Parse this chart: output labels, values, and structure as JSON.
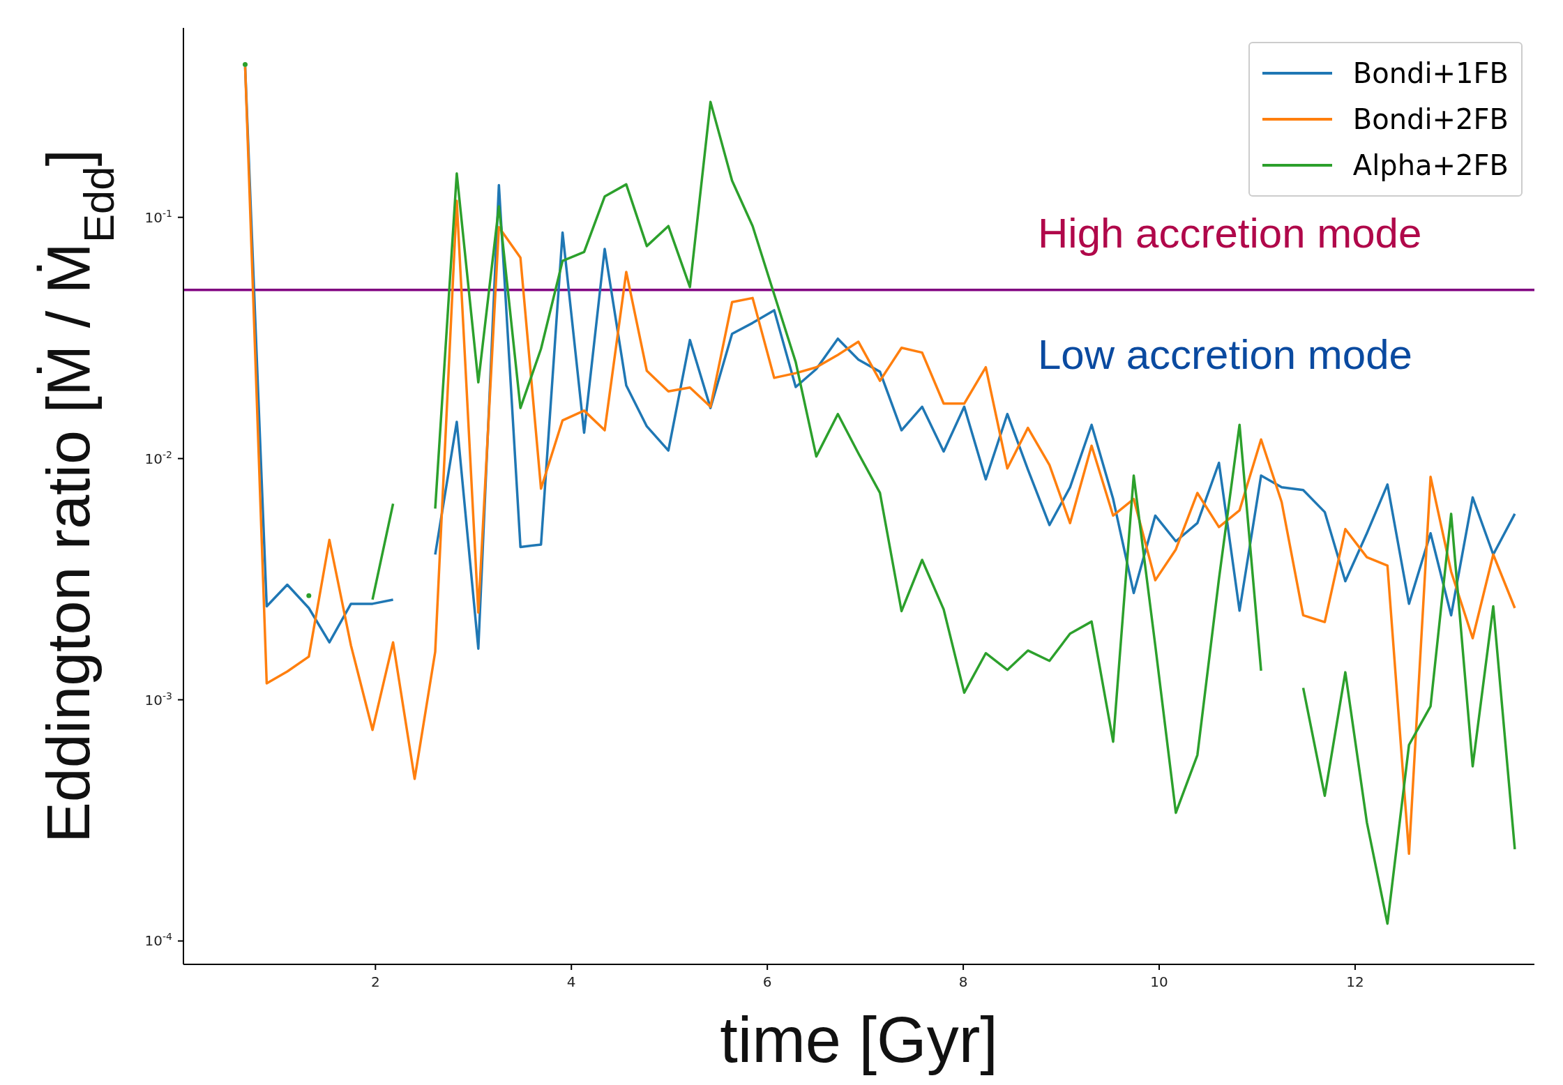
{
  "chart_data": {
    "type": "line",
    "xlabel": "time [Gyr]",
    "ylabel": "Eddington ratio [Ṁ / Ṁ$_{Edd}$]",
    "x": [
      0.67,
      0.89,
      1.1,
      1.32,
      1.53,
      1.75,
      1.97,
      2.18,
      2.4,
      2.61,
      2.83,
      3.05,
      3.26,
      3.48,
      3.69,
      3.91,
      4.13,
      4.34,
      4.56,
      4.77,
      4.99,
      5.21,
      5.42,
      5.64,
      5.85,
      6.07,
      6.29,
      6.5,
      6.72,
      6.93,
      7.15,
      7.37,
      7.58,
      7.8,
      8.01,
      8.23,
      8.45,
      8.66,
      8.88,
      9.09,
      9.31,
      9.53,
      9.74,
      9.96,
      10.17,
      10.39,
      10.61,
      10.82,
      11.04,
      11.25,
      11.47,
      11.69,
      11.9,
      12.12,
      12.33,
      12.55,
      12.77,
      12.98,
      13.2,
      13.41,
      13.63
    ],
    "series": [
      {
        "name": "Bondi+1FB",
        "color": "#1f77b4",
        "values": [
          0.42,
          0.00244,
          0.003,
          0.0024,
          0.00173,
          0.0025,
          0.0025,
          0.0026,
          null,
          0.004,
          0.0142,
          0.00163,
          0.136,
          0.0043,
          0.0044,
          0.0865,
          0.0128,
          0.074,
          0.0201,
          0.0136,
          0.0108,
          0.031,
          0.0162,
          0.0329,
          0.0365,
          0.0412,
          0.0198,
          0.0235,
          0.0314,
          0.0257,
          0.0229,
          0.0131,
          0.0164,
          0.0107,
          0.0164,
          0.0082,
          0.0153,
          0.009,
          0.0053,
          0.0076,
          0.0138,
          0.0068,
          0.00277,
          0.0058,
          0.00454,
          0.0054,
          0.0096,
          0.00234,
          0.0085,
          0.0076,
          0.0074,
          0.006,
          0.0031,
          0.0049,
          0.0078,
          0.0025,
          0.0049,
          0.00224,
          0.0069,
          0.004,
          0.0059
        ]
      },
      {
        "name": "Bondi+2FB",
        "color": "#ff7f0e",
        "values": [
          0.42,
          0.00117,
          0.00131,
          0.00151,
          0.0046,
          0.00168,
          0.00075,
          0.00173,
          0.00047,
          0.00158,
          0.117,
          0.0023,
          0.091,
          0.068,
          0.0075,
          0.0144,
          0.0158,
          0.0131,
          0.0594,
          0.0231,
          0.019,
          0.0197,
          0.0164,
          0.0445,
          0.0463,
          0.0216,
          0.0226,
          0.0239,
          0.0269,
          0.0305,
          0.021,
          0.0288,
          0.0275,
          0.0169,
          0.0169,
          0.0239,
          0.0091,
          0.0134,
          0.0094,
          0.0054,
          0.0113,
          0.0058,
          0.0068,
          0.00313,
          0.0042,
          0.0072,
          0.0052,
          0.0061,
          0.012,
          0.0066,
          0.00224,
          0.0021,
          0.0051,
          0.0039,
          0.0036,
          0.00023,
          0.0084,
          0.0034,
          0.0018,
          0.004,
          0.0024
        ]
      },
      {
        "name": "Alpha+2FB",
        "color": "#2ca02c",
        "values": [
          0.43,
          null,
          null,
          0.0027,
          null,
          null,
          0.0026,
          0.0065,
          null,
          0.0062,
          0.152,
          0.0207,
          0.111,
          0.0162,
          0.0285,
          0.066,
          0.0718,
          0.122,
          0.137,
          0.076,
          0.092,
          0.0514,
          0.301,
          0.142,
          0.092,
          0.048,
          0.0251,
          0.0102,
          0.0153,
          0.0105,
          0.0072,
          0.00233,
          0.0038,
          0.00237,
          0.00107,
          0.00156,
          0.00133,
          0.0016,
          0.00145,
          0.00188,
          0.00211,
          0.00067,
          0.0085,
          0.00168,
          0.00034,
          0.00059,
          0.00317,
          0.0138,
          0.00132,
          null,
          0.00112,
          0.0004,
          0.0013,
          0.00031,
          0.000118,
          0.00065,
          0.00094,
          0.0059,
          0.00053,
          0.00244,
          0.00024
        ]
      }
    ],
    "xlim": [
      0.04,
      13.83
    ],
    "xticks": [
      2,
      4,
      6,
      8,
      10,
      12
    ],
    "ylim": [
      8e-05,
      0.61
    ],
    "log": true,
    "yticks": [
      {
        "value": 0.0001,
        "label": "10$^{-4}$"
      },
      {
        "value": 0.001,
        "label": "10$^{-3}$"
      },
      {
        "value": 0.01,
        "label": "10$^{-2}$"
      },
      {
        "value": 0.1,
        "label": "10$^{-1}$"
      }
    ],
    "ref_lines": [
      {
        "axis": "y",
        "value": 0.05,
        "color": "#800080"
      }
    ],
    "annotations": [
      "High accretion mode",
      "Low accretion mode"
    ],
    "legend": "top right",
    "grid": false,
    "marker": "none",
    "line_style": "solid"
  }
}
